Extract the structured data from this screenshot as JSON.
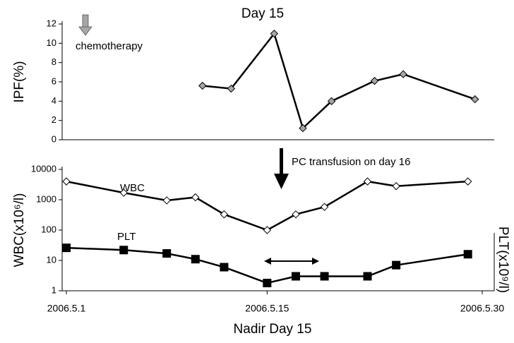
{
  "chart_data": [
    {
      "type": "line",
      "ylabel": "IPF(%)",
      "annotations": [
        "Day 15",
        "chemotherapy"
      ],
      "x": [
        "2006-05-10",
        "2006-05-12",
        "2006-05-15",
        "2006-05-17",
        "2006-05-19",
        "2006-05-22",
        "2006-05-24",
        "2006-05-29"
      ],
      "series": [
        {
          "name": "IPF",
          "color": "#a6a6a6",
          "marker": "diamond",
          "values": [
            5.6,
            5.3,
            11,
            1.2,
            4,
            6.1,
            6.8,
            4.2
          ]
        }
      ],
      "xlim": [
        "2006-05-01",
        "2006-05-30"
      ],
      "ylim": [
        0,
        12
      ],
      "yticks": [
        0,
        2,
        4,
        6,
        8,
        10,
        12
      ]
    },
    {
      "type": "line",
      "xlabel": "Nadir Day 15",
      "ylabel": "WBC(x10⁶/l)",
      "y2label": "PLT(x10⁹/l)",
      "annotations": [
        "PC transfusion on day 16",
        "WBC",
        "PLT"
      ],
      "x": [
        "2006-05-01",
        "2006-05-05",
        "2006-05-08",
        "2006-05-10",
        "2006-05-12",
        "2006-05-15",
        "2006-05-17",
        "2006-05-19",
        "2006-05-22",
        "2006-05-24",
        "2006-05-29"
      ],
      "series": [
        {
          "name": "WBC",
          "color": "#ffffff",
          "marker": "diamond",
          "values": [
            4000,
            1700,
            950,
            1200,
            330,
            100,
            330,
            580,
            4000,
            2800,
            4000
          ]
        },
        {
          "name": "PLT",
          "color": "#000000",
          "marker": "square",
          "values": [
            26,
            22,
            17,
            11,
            6,
            1.8,
            3,
            3,
            3,
            7,
            16
          ]
        }
      ],
      "xlim": [
        "2006-05-01",
        "2006-05-30"
      ],
      "xticks": [
        {
          "value": "2006-05-01",
          "label": "2006.5.1"
        },
        {
          "value": "2006-05-15",
          "label": "2006.5.15"
        },
        {
          "value": "2006-05-30",
          "label": "2006.5.30"
        }
      ],
      "ylim": [
        1,
        10000
      ],
      "yticks": [
        1,
        10,
        100,
        1000,
        10000
      ],
      "log_scale": true
    }
  ]
}
